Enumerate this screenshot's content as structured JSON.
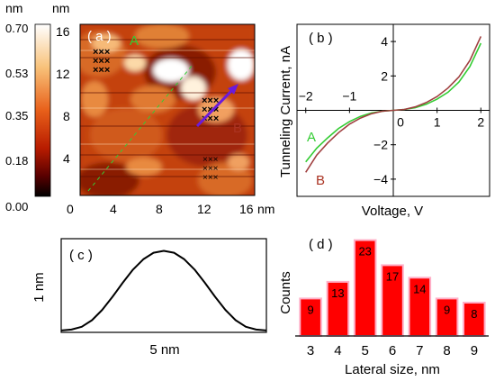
{
  "colorbar": {
    "unit": "nm",
    "ticks": [
      "0.70",
      "0.53",
      "0.35",
      "0.18",
      "0.00"
    ],
    "gradient": [
      "#ffffff",
      "#f8c27a",
      "#e8601a",
      "#b81c00",
      "#5a0000",
      "#000000"
    ]
  },
  "panel_a": {
    "label": "( a )",
    "y_unit": "nm",
    "x_unit": "nm",
    "y_ticks": [
      "16",
      "12",
      "8",
      "4"
    ],
    "x_ticks": [
      "0",
      "4",
      "8",
      "12",
      "16"
    ],
    "marker_a": "A",
    "marker_b": "B",
    "colors": {
      "marker_a": "#33cc33",
      "marker_b": "#aa3322",
      "arrow": "#6a1bdc"
    }
  },
  "panel_b": {
    "label": "( b )",
    "xlabel": "Voltage, V",
    "ylabel": "Tunneling Current, nA",
    "curve_a_label": "A",
    "curve_b_label": "B"
  },
  "panel_c": {
    "label": "( c )",
    "xlabel": "5 nm",
    "ylabel": "1 nm"
  },
  "panel_d": {
    "label": "( d )",
    "xlabel": "Lateral size, nm",
    "ylabel": "Counts",
    "bar_color": "#ff0000"
  },
  "chart_data": [
    {
      "type": "line",
      "panel": "b",
      "xlim": [
        -2.2,
        2.2
      ],
      "ylim": [
        -5,
        5
      ],
      "x_ticks": [
        -2,
        -1,
        0,
        1,
        2
      ],
      "y_ticks": [
        -4,
        -2,
        2,
        4
      ],
      "series": [
        {
          "name": "A",
          "color": "#33cc33",
          "x": [
            -2.0,
            -1.75,
            -1.5,
            -1.25,
            -1.0,
            -0.75,
            -0.5,
            -0.25,
            0,
            0.25,
            0.5,
            0.75,
            1.0,
            1.25,
            1.5,
            1.75,
            2.0
          ],
          "y": [
            -3.0,
            -2.2,
            -1.6,
            -1.05,
            -0.65,
            -0.35,
            -0.15,
            -0.05,
            0,
            0.05,
            0.15,
            0.35,
            0.65,
            1.05,
            1.65,
            2.55,
            3.9
          ]
        },
        {
          "name": "B",
          "color": "#a04040",
          "x": [
            -2.0,
            -1.75,
            -1.5,
            -1.25,
            -1.0,
            -0.75,
            -0.5,
            -0.25,
            0,
            0.25,
            0.5,
            0.75,
            1.0,
            1.25,
            1.5,
            1.75,
            2.0
          ],
          "y": [
            -3.6,
            -2.6,
            -1.9,
            -1.3,
            -0.8,
            -0.45,
            -0.2,
            -0.05,
            0,
            0.05,
            0.2,
            0.45,
            0.8,
            1.3,
            1.95,
            2.9,
            4.3
          ]
        }
      ]
    },
    {
      "type": "line",
      "panel": "c",
      "x": [
        0,
        0.05,
        0.1,
        0.15,
        0.2,
        0.25,
        0.3,
        0.35,
        0.4,
        0.45,
        0.5,
        0.55,
        0.6,
        0.65,
        0.7,
        0.75,
        0.8,
        0.85,
        0.9,
        0.95,
        1.0
      ],
      "y": [
        0.02,
        0.03,
        0.06,
        0.13,
        0.24,
        0.38,
        0.53,
        0.67,
        0.78,
        0.85,
        0.87,
        0.85,
        0.78,
        0.67,
        0.53,
        0.38,
        0.24,
        0.13,
        0.06,
        0.03,
        0.02
      ],
      "xlim": [
        0,
        1
      ],
      "ylim": [
        0,
        1
      ]
    },
    {
      "type": "bar",
      "panel": "d",
      "categories": [
        "3",
        "4",
        "5",
        "6",
        "7",
        "8",
        "9"
      ],
      "values": [
        9,
        13,
        23,
        17,
        14,
        9,
        8
      ],
      "ylim": [
        0,
        24
      ]
    }
  ]
}
